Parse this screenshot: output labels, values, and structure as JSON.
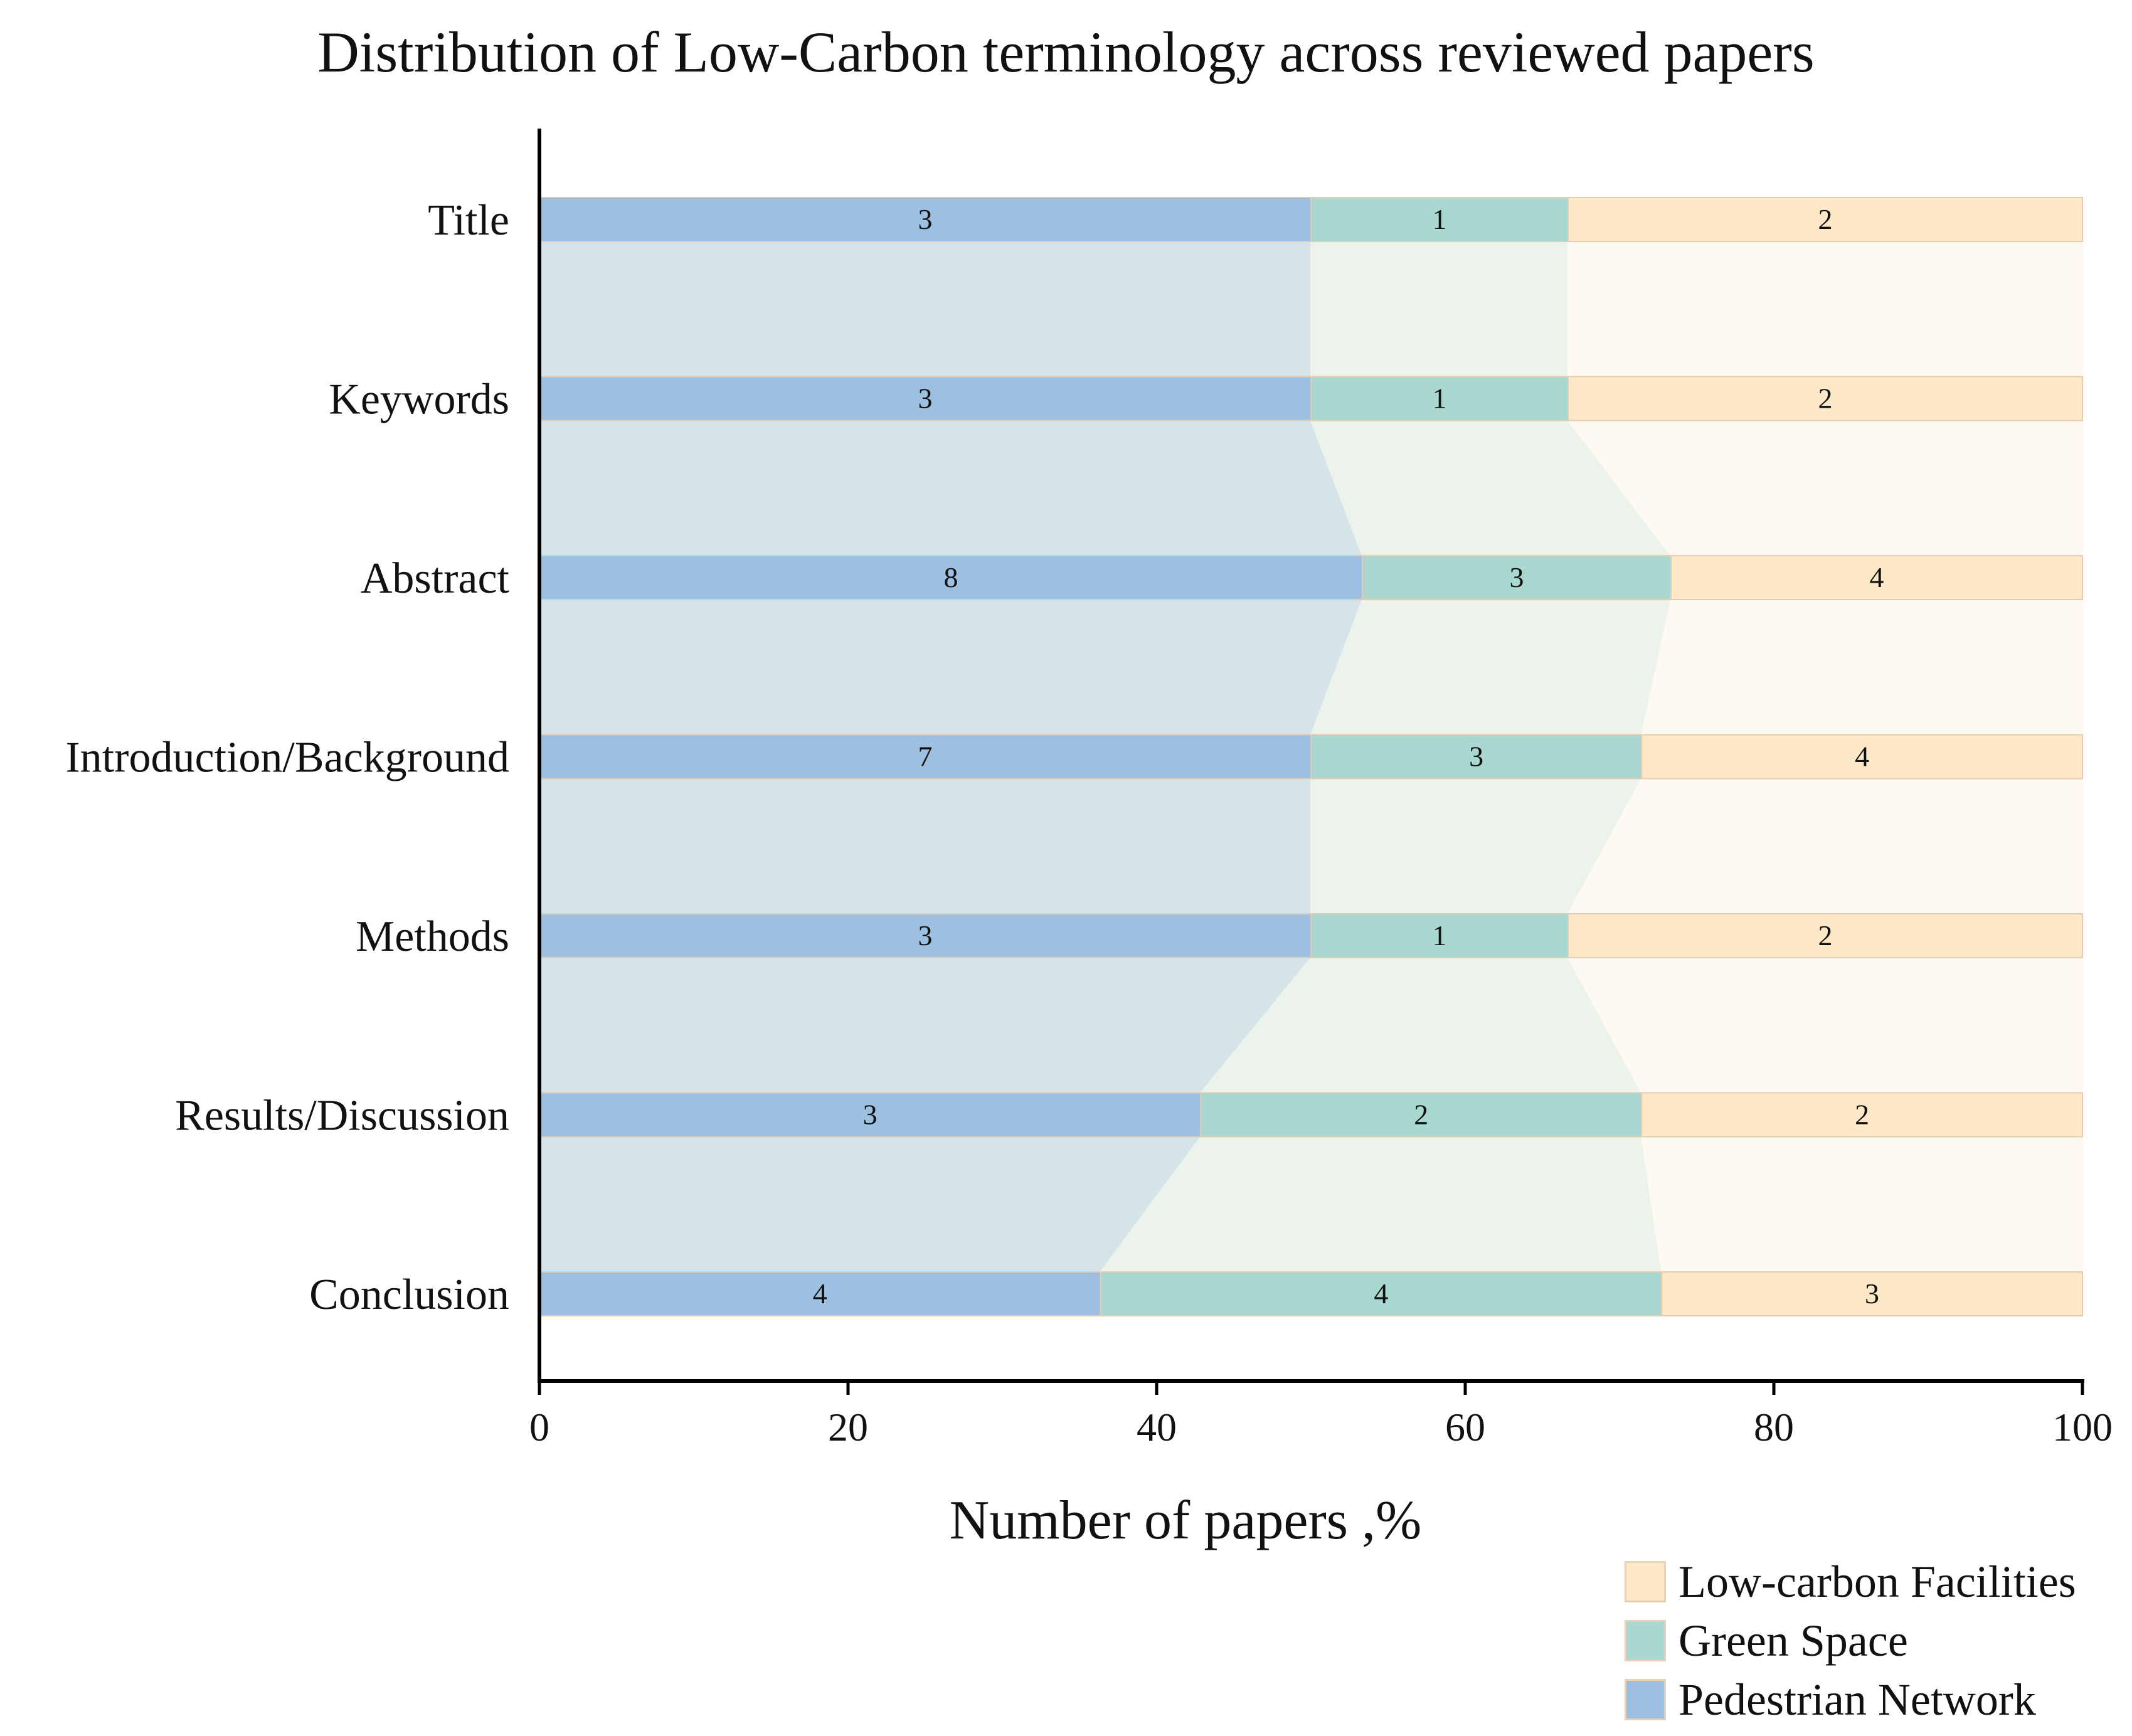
{
  "chart_data": {
    "type": "bar",
    "stacked": true,
    "orientation": "horizontal",
    "percent_scale": true,
    "title": "Distribution of Low-Carbon terminology across reviewed papers",
    "xlabel": "Number of papers ,%",
    "ylabel": "",
    "xlim": [
      0,
      100
    ],
    "x_ticks": [
      "0",
      "20",
      "40",
      "60",
      "80",
      "100"
    ],
    "categories": [
      "Title",
      "Keywords",
      "Abstract",
      "Introduction/Background",
      "Methods",
      "Results/Discussion",
      "Conclusion"
    ],
    "series": [
      {
        "name": "Pedestrian Network",
        "values": [
          3,
          3,
          8,
          7,
          3,
          3,
          4
        ],
        "color": "#9dbfe0"
      },
      {
        "name": "Green Space",
        "values": [
          1,
          1,
          3,
          3,
          1,
          2,
          4
        ],
        "color": "#a8d8d0"
      },
      {
        "name": "Low-carbon Facilities",
        "values": [
          2,
          2,
          4,
          4,
          2,
          2,
          3
        ],
        "color": "#fde9c8"
      }
    ],
    "connector_colors": [
      "#d6e4ea",
      "#ebf3ea",
      "#fef9f1"
    ],
    "legend_order": [
      "Low-carbon Facilities",
      "Green Space",
      "Pedestrian Network"
    ],
    "legend_position": "bottom-right",
    "grid": false
  }
}
